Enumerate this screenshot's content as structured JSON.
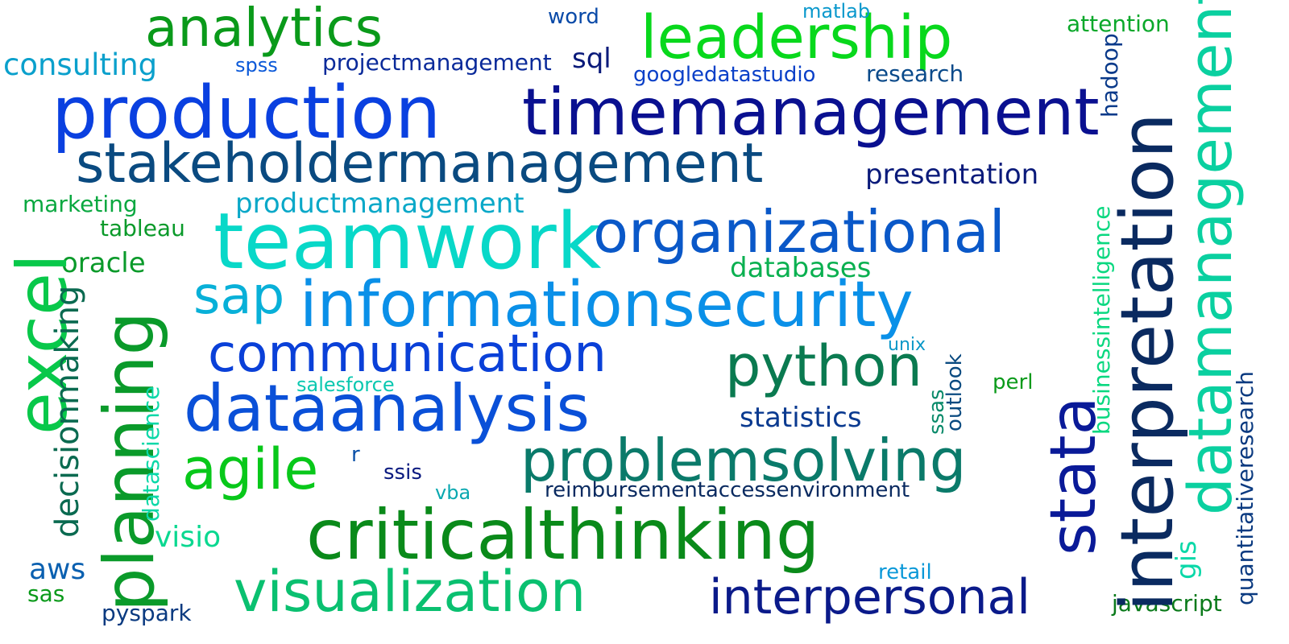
{
  "words": [
    {
      "text": "analytics",
      "color": "#0a9a1a"
    },
    {
      "text": "leadership",
      "color": "#08d81c"
    },
    {
      "text": "consulting",
      "color": "#0aa0cc"
    },
    {
      "text": "spss",
      "color": "#0a58d8"
    },
    {
      "text": "projectmanagement",
      "color": "#0a2a9a"
    },
    {
      "text": "sql",
      "color": "#0a1a7a"
    },
    {
      "text": "word",
      "color": "#0a4aa8"
    },
    {
      "text": "matlab",
      "color": "#0a98cc"
    },
    {
      "text": "attention",
      "color": "#0aa82a"
    },
    {
      "text": "googledatastudio",
      "color": "#0a40c8"
    },
    {
      "text": "research",
      "color": "#0a4a8a"
    },
    {
      "text": "production",
      "color": "#0a40e0"
    },
    {
      "text": "timemanagement",
      "color": "#0a1090"
    },
    {
      "text": "stakeholdermanagement",
      "color": "#0a4a80"
    },
    {
      "text": "presentation",
      "color": "#0a1a7a"
    },
    {
      "text": "marketing",
      "color": "#0aa840"
    },
    {
      "text": "productmanagement",
      "color": "#0aa8c8"
    },
    {
      "text": "tableau",
      "color": "#0a9a2a"
    },
    {
      "text": "teamwork",
      "color": "#08d8c8"
    },
    {
      "text": "organizational",
      "color": "#0a58c8"
    },
    {
      "text": "oracle",
      "color": "#0a9a2a"
    },
    {
      "text": "databases",
      "color": "#0ab050"
    },
    {
      "text": "sap",
      "color": "#08b0d8"
    },
    {
      "text": "informationsecurity",
      "color": "#0a90e8"
    },
    {
      "text": "communication",
      "color": "#0a40d8"
    },
    {
      "text": "python",
      "color": "#0a7a50"
    },
    {
      "text": "dataanalysis",
      "color": "#0a50d8"
    },
    {
      "text": "unix",
      "color": "#0a98c8"
    },
    {
      "text": "salesforce",
      "color": "#0ac8b0"
    },
    {
      "text": "statistics",
      "color": "#0a3a90"
    },
    {
      "text": "perl",
      "color": "#0a9a1a"
    },
    {
      "text": "agile",
      "color": "#08c81a"
    },
    {
      "text": "r",
      "color": "#0a50a8"
    },
    {
      "text": "problemsolving",
      "color": "#0a7a6a"
    },
    {
      "text": "ssis",
      "color": "#0a1a80"
    },
    {
      "text": "vba",
      "color": "#0aa8b0"
    },
    {
      "text": "reimbursementaccessenvironment",
      "color": "#0a2a60"
    },
    {
      "text": "visio",
      "color": "#0ad890"
    },
    {
      "text": "criticalthinking",
      "color": "#0a8a1a"
    },
    {
      "text": "aws",
      "color": "#0a60b0"
    },
    {
      "text": "visualization",
      "color": "#0ac070"
    },
    {
      "text": "interpersonal",
      "color": "#0a1a8a"
    },
    {
      "text": "retail",
      "color": "#0a98d8"
    },
    {
      "text": "sas",
      "color": "#0a9a1a"
    },
    {
      "text": "pyspark",
      "color": "#0a3a80"
    },
    {
      "text": "javascript",
      "color": "#0a7a1a"
    },
    {
      "text": "excel",
      "color": "#08c84a"
    },
    {
      "text": "planning",
      "color": "#0a9a2a"
    },
    {
      "text": "decisionmaking",
      "color": "#0a6a50"
    },
    {
      "text": "datascience",
      "color": "#0ad8a8"
    },
    {
      "text": "stata",
      "color": "#0a1a98"
    },
    {
      "text": "interpretation",
      "color": "#0a2a60"
    },
    {
      "text": "datamanagement",
      "color": "#0ad0a0"
    },
    {
      "text": "hadoop",
      "color": "#0a3a8a"
    },
    {
      "text": "businessintelligence",
      "color": "#0ad880"
    },
    {
      "text": "ssas",
      "color": "#0a8a6a"
    },
    {
      "text": "outlook",
      "color": "#0a4a80"
    },
    {
      "text": "gis",
      "color": "#0ad8a8"
    },
    {
      "text": "quantitativeresearch",
      "color": "#0a3a80"
    }
  ]
}
